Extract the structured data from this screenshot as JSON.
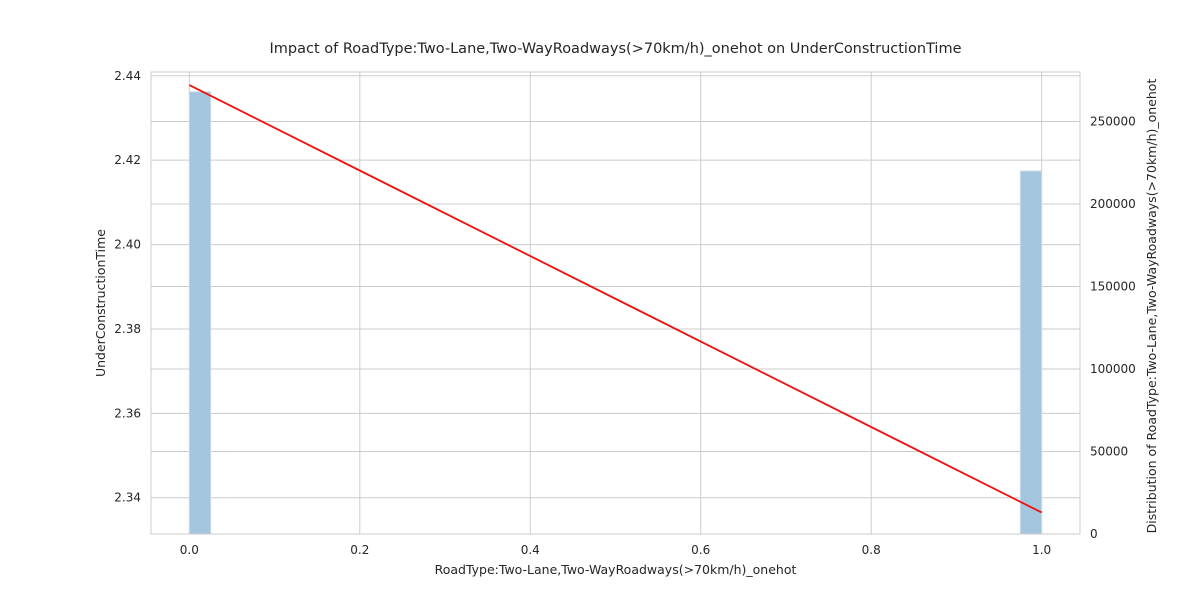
{
  "chart_data": {
    "type": "bar+line",
    "title": "Impact of RoadType:Two-Lane,Two-WayRoadways(>70km/h)_onehot on UnderConstructionTime",
    "xlabel": "RoadType:Two-Lane,Two-WayRoadways(>70km/h)_onehot",
    "ylabel": "UnderConstructionTime",
    "y2label": "Distribution of RoadType:Two-Lane,Two-WayRoadways(>70km/h)_onehot",
    "xlim": [
      -0.045,
      1.045
    ],
    "ylim": [
      2.3314,
      2.4409
    ],
    "y2lim": [
      0,
      280000
    ],
    "xticks": [
      0.0,
      0.2,
      0.4,
      0.6,
      0.8,
      1.0
    ],
    "xtick_labels": [
      "0.0",
      "0.2",
      "0.4",
      "0.6",
      "0.8",
      "1.0"
    ],
    "yticks": [
      2.34,
      2.36,
      2.38,
      2.4,
      2.42,
      2.44
    ],
    "ytick_labels": [
      "2.34",
      "2.36",
      "2.38",
      "2.40",
      "2.42",
      "2.44"
    ],
    "y2ticks": [
      0,
      50000,
      100000,
      150000,
      200000,
      250000
    ],
    "y2tick_labels": [
      "0",
      "50000",
      "100000",
      "150000",
      "200000",
      "250000"
    ],
    "grid": true,
    "histogram": {
      "bar_width": 0.025,
      "bars": [
        {
          "x": 0.0125,
          "count": 268000
        },
        {
          "x": 0.9875,
          "count": 220000
        }
      ],
      "color": "#a3c6de",
      "edge_color": "#c9dcea"
    },
    "trend_line": {
      "x": [
        0.0,
        1.0
      ],
      "y": [
        2.4378,
        2.3365
      ],
      "color": "#ee1111"
    }
  }
}
